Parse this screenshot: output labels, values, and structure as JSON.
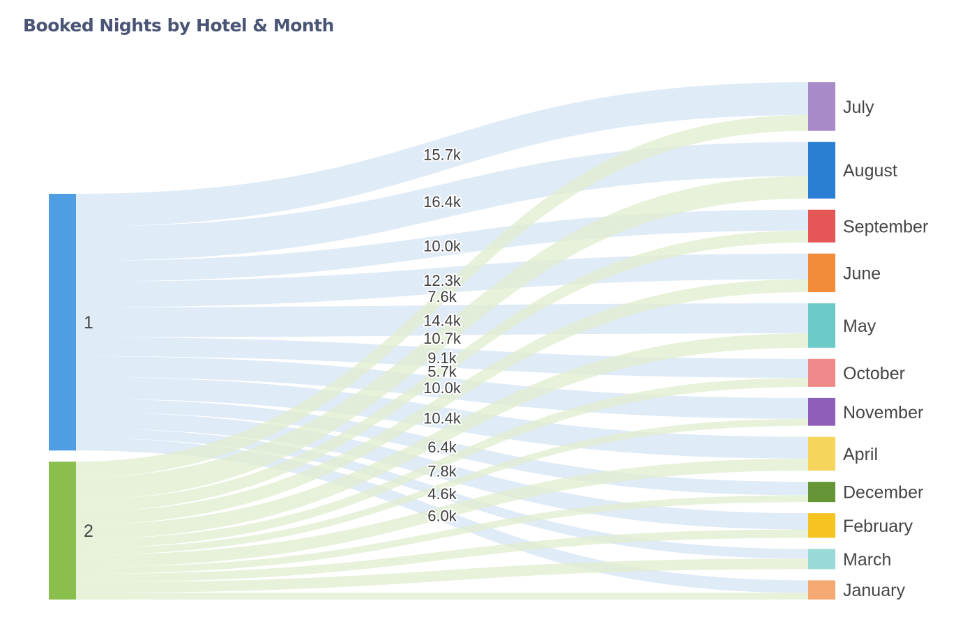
{
  "chart_data": {
    "type": "sankey",
    "title": "Booked Nights by Hotel & Month",
    "sources": [
      {
        "label": "1",
        "color": "#4f9de3"
      },
      {
        "label": "2",
        "color": "#8abf4e"
      }
    ],
    "targets": [
      {
        "label": "July",
        "color": "#a88ac8"
      },
      {
        "label": "August",
        "color": "#2a7fd4"
      },
      {
        "label": "September",
        "color": "#e55756"
      },
      {
        "label": "June",
        "color": "#f28b3a"
      },
      {
        "label": "May",
        "color": "#6ccbc8"
      },
      {
        "label": "October",
        "color": "#f08a8a"
      },
      {
        "label": "November",
        "color": "#8d5fb8"
      },
      {
        "label": "April",
        "color": "#f6d55c"
      },
      {
        "label": "December",
        "color": "#659536"
      },
      {
        "label": "February",
        "color": "#f5c420"
      },
      {
        "label": "March",
        "color": "#9ad9d6"
      },
      {
        "label": "January",
        "color": "#f4a872"
      }
    ],
    "link_colors": {
      "1": "#d6e6f5",
      "2": "#e1edcf"
    },
    "links": [
      {
        "source": "1",
        "target": "July",
        "value": 15.7,
        "label": "15.7k"
      },
      {
        "source": "1",
        "target": "August",
        "value": 16.4,
        "label": "16.4k"
      },
      {
        "source": "1",
        "target": "September",
        "value": 10.0,
        "label": "10.0k"
      },
      {
        "source": "1",
        "target": "June",
        "value": 12.3,
        "label": "12.3k"
      },
      {
        "source": "1",
        "target": "May",
        "value": 14.4,
        "label": "14.4k"
      },
      {
        "source": "1",
        "target": "October",
        "value": 9.1,
        "label": "9.1k"
      },
      {
        "source": "1",
        "target": "November",
        "value": 10.0,
        "label": "10.0k"
      },
      {
        "source": "1",
        "target": "April",
        "value": 10.4,
        "label": "10.4k"
      },
      {
        "source": "1",
        "target": "December",
        "value": 6.4,
        "label": "6.4k"
      },
      {
        "source": "1",
        "target": "February",
        "value": 7.8,
        "label": "7.8k"
      },
      {
        "source": "1",
        "target": "March",
        "value": 4.6,
        "label": "4.6k"
      },
      {
        "source": "1",
        "target": "January",
        "value": 6.0,
        "label": "6.0k"
      },
      {
        "source": "2",
        "target": "July",
        "value": 7.6,
        "label": "7.6k"
      },
      {
        "source": "2",
        "target": "August",
        "value": 10.7,
        "label": "10.7k"
      },
      {
        "source": "2",
        "target": "September",
        "value": 5.7,
        "label": "5.7k"
      },
      {
        "source": "2",
        "target": "June",
        "value": 6.2
      },
      {
        "source": "2",
        "target": "May",
        "value": 6.9
      },
      {
        "source": "2",
        "target": "October",
        "value": 4.3
      },
      {
        "source": "2",
        "target": "November",
        "value": 3.3
      },
      {
        "source": "2",
        "target": "April",
        "value": 5.8
      },
      {
        "source": "2",
        "target": "December",
        "value": 3.3
      },
      {
        "source": "2",
        "target": "February",
        "value": 4.0
      },
      {
        "source": "2",
        "target": "March",
        "value": 5.1
      },
      {
        "source": "2",
        "target": "January",
        "value": 3.2
      }
    ]
  }
}
